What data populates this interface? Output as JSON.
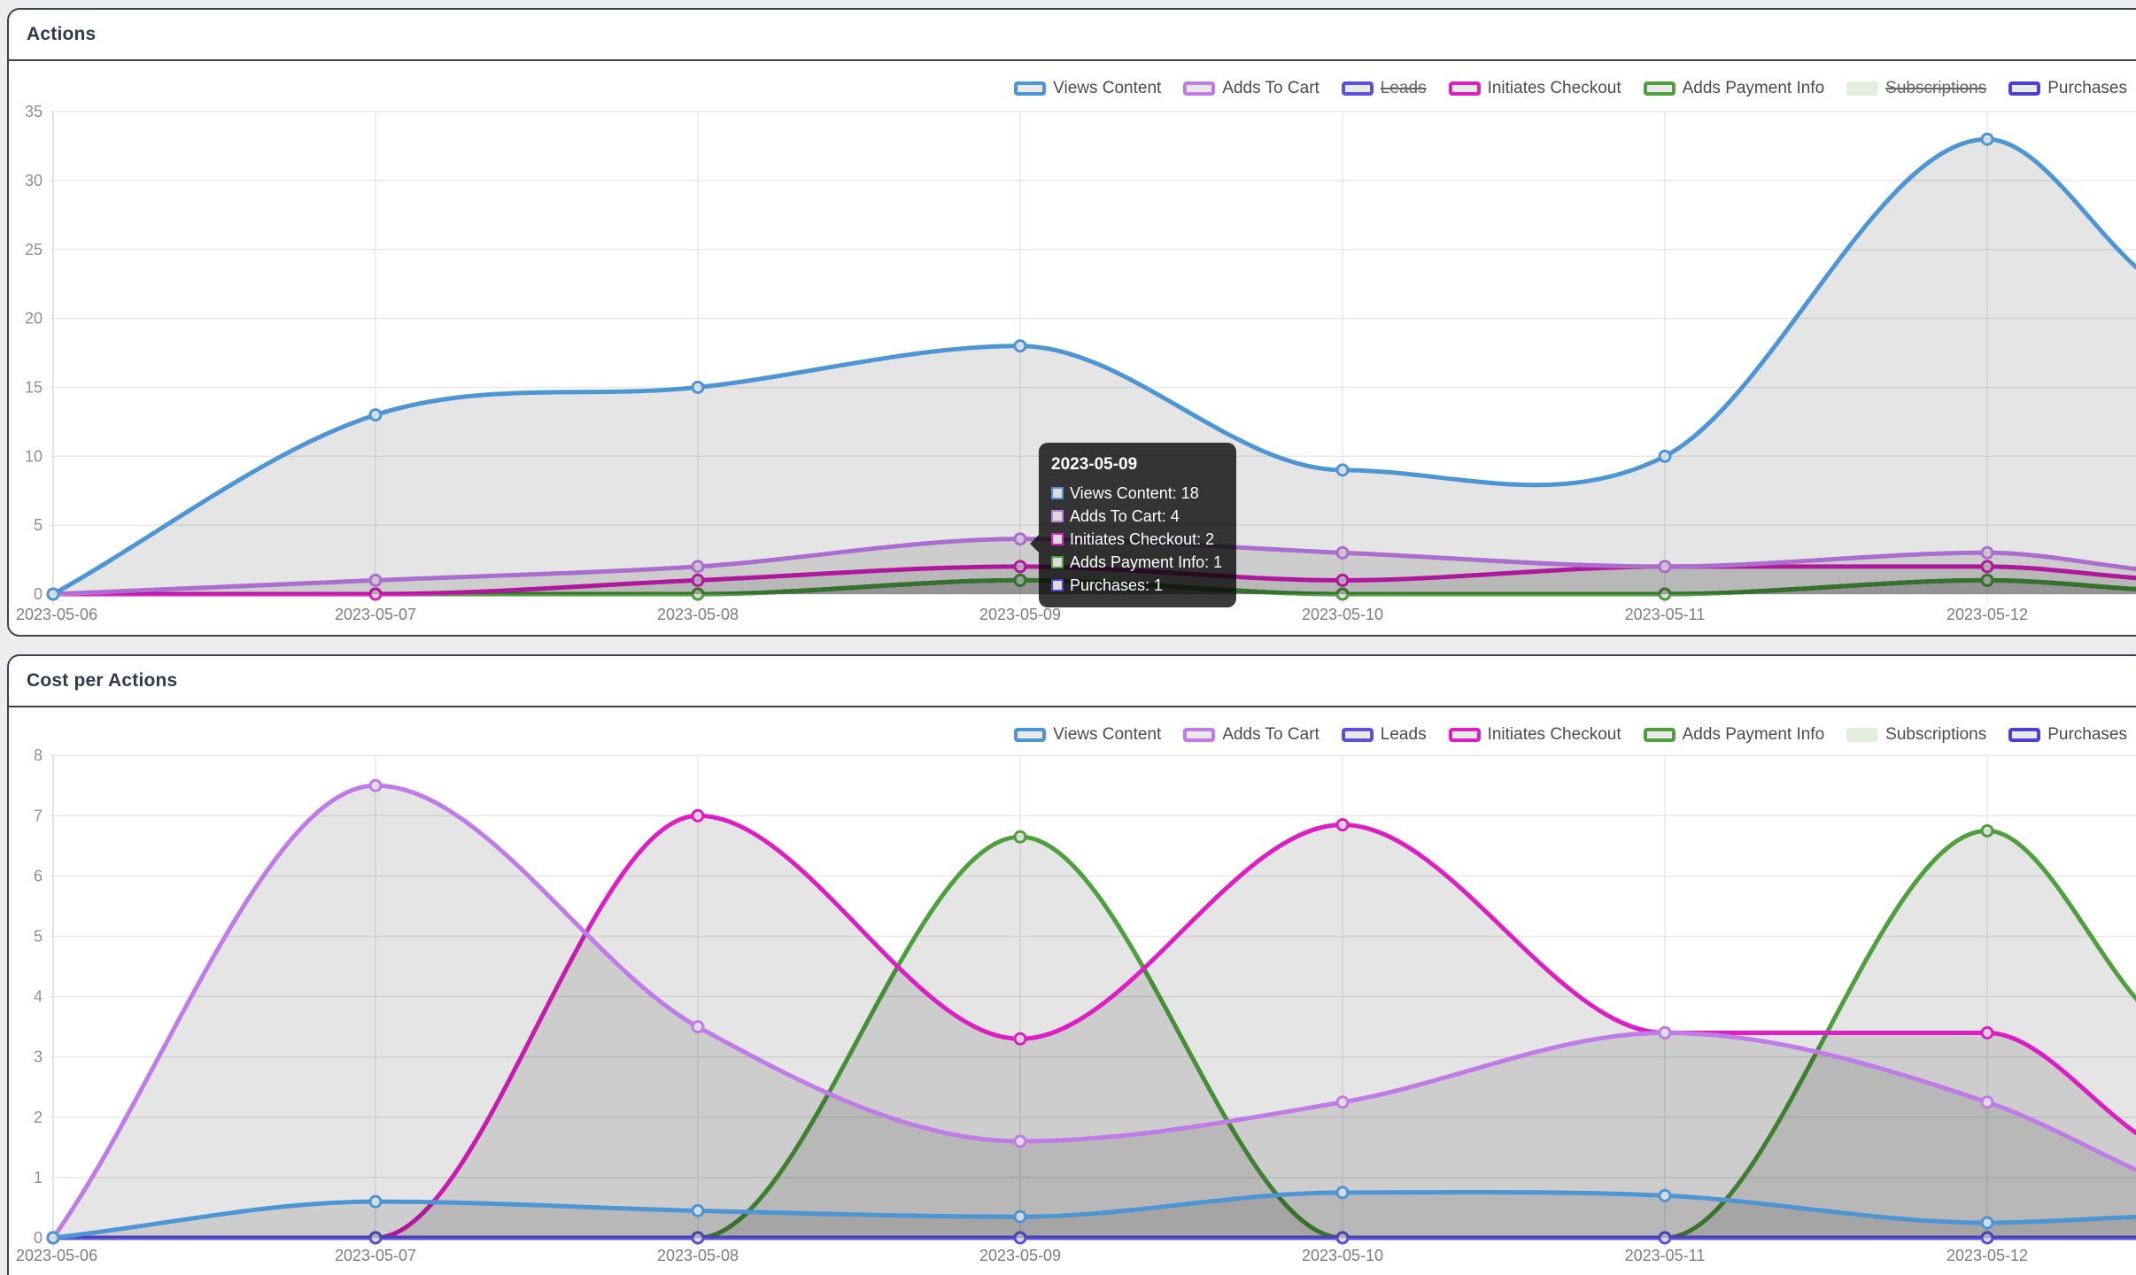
{
  "page": {
    "background": "#ededee",
    "card_border": "#394153",
    "card_background": "#ffffff",
    "title_color": "#2d3a4e",
    "area_fill": "rgba(0,0,0,0.10)",
    "dot_fill": "#e8e8e8",
    "grid_color": "#e8e8e8"
  },
  "chart_data": [
    {
      "type": "area",
      "title": "Actions",
      "legend_position": "top-right",
      "grid": true,
      "clipped_right": true,
      "categories": [
        "2023-05-06",
        "2023-05-07",
        "2023-05-08",
        "2023-05-09",
        "2023-05-10",
        "2023-05-11",
        "2023-05-12"
      ],
      "ylim": [
        0,
        35
      ],
      "ytick_step": 5,
      "series": [
        {
          "name": "Views Content",
          "color": "#4e95d4",
          "disabled": false,
          "values": [
            0,
            13,
            15,
            18,
            9,
            10,
            33
          ],
          "edge_value": 23.5
        },
        {
          "name": "Adds To Cart",
          "color": "#bf7be6",
          "disabled": false,
          "values": [
            0,
            1,
            2,
            4,
            3,
            2,
            3
          ],
          "edge_value": 1.8
        },
        {
          "name": "Leads",
          "color": "#5c51dd",
          "disabled": true,
          "values": null,
          "edge_value": null
        },
        {
          "name": "Initiates Checkout",
          "color": "#dc1fc2",
          "disabled": false,
          "values": [
            0,
            0,
            1,
            2,
            1,
            2,
            2
          ],
          "edge_value": 1.15
        },
        {
          "name": "Adds Payment Info",
          "color": "#4f9f3f",
          "disabled": false,
          "values": [
            0,
            0,
            0,
            1,
            0,
            0,
            1
          ],
          "edge_value": 0.35
        },
        {
          "name": "Subscriptions",
          "color": "#e2efdc",
          "disabled": true,
          "values": null,
          "edge_value": null,
          "swatch_solid": true
        },
        {
          "name": "Purchases",
          "color": "#4a40d4",
          "disabled": false,
          "values": [
            0,
            0,
            0,
            1,
            0,
            0,
            1
          ],
          "edge_value": 0.35
        }
      ]
    },
    {
      "type": "area",
      "title": "Cost per Actions",
      "legend_position": "top-right",
      "grid": true,
      "clipped_right": true,
      "categories": [
        "2023-05-06",
        "2023-05-07",
        "2023-05-08",
        "2023-05-09",
        "2023-05-10",
        "2023-05-11",
        "2023-05-12"
      ],
      "ylim": [
        0,
        8
      ],
      "ytick_step": 1,
      "series": [
        {
          "name": "Views Content",
          "color": "#4e95d4",
          "disabled": false,
          "values": [
            0,
            0.6,
            0.45,
            0.35,
            0.75,
            0.7,
            0.25
          ],
          "edge_value": 0.35
        },
        {
          "name": "Adds To Cart",
          "color": "#bf7be6",
          "disabled": false,
          "values": [
            0,
            7.5,
            3.5,
            1.6,
            2.25,
            3.4,
            2.25
          ],
          "edge_value": 1.1
        },
        {
          "name": "Leads",
          "color": "#5c51dd",
          "disabled": false,
          "values": [
            0,
            0,
            0,
            0,
            0,
            0,
            0
          ],
          "edge_value": 0
        },
        {
          "name": "Initiates Checkout",
          "color": "#dc1fc2",
          "disabled": false,
          "values": [
            0,
            0,
            7,
            3.3,
            6.85,
            3.4,
            3.4
          ],
          "edge_value": 1.7
        },
        {
          "name": "Adds Payment Info",
          "color": "#4f9f3f",
          "disabled": false,
          "values": [
            0,
            0,
            0,
            6.65,
            0,
            0,
            6.75
          ],
          "edge_value": 3.9
        },
        {
          "name": "Subscriptions",
          "color": "#e2efdc",
          "disabled": false,
          "values": [
            0,
            0,
            0,
            0,
            0,
            0,
            0
          ],
          "edge_value": 0,
          "swatch_solid": true
        },
        {
          "name": "Purchases",
          "color": "#4a40d4",
          "disabled": false,
          "values": [
            0,
            0,
            0,
            0,
            0,
            0,
            0
          ],
          "edge_value": 0
        }
      ]
    }
  ],
  "tooltip": {
    "date": "2023-05-09",
    "rows": [
      {
        "label": "Views Content",
        "value": 18,
        "color": "#4e95d4"
      },
      {
        "label": "Adds To Cart",
        "value": 4,
        "color": "#bf7be6"
      },
      {
        "label": "Initiates Checkout",
        "value": 2,
        "color": "#dc1fc2"
      },
      {
        "label": "Adds Payment Info",
        "value": 1,
        "color": "#4f9f3f"
      },
      {
        "label": "Purchases",
        "value": 1,
        "color": "#4a40d4"
      }
    ]
  }
}
